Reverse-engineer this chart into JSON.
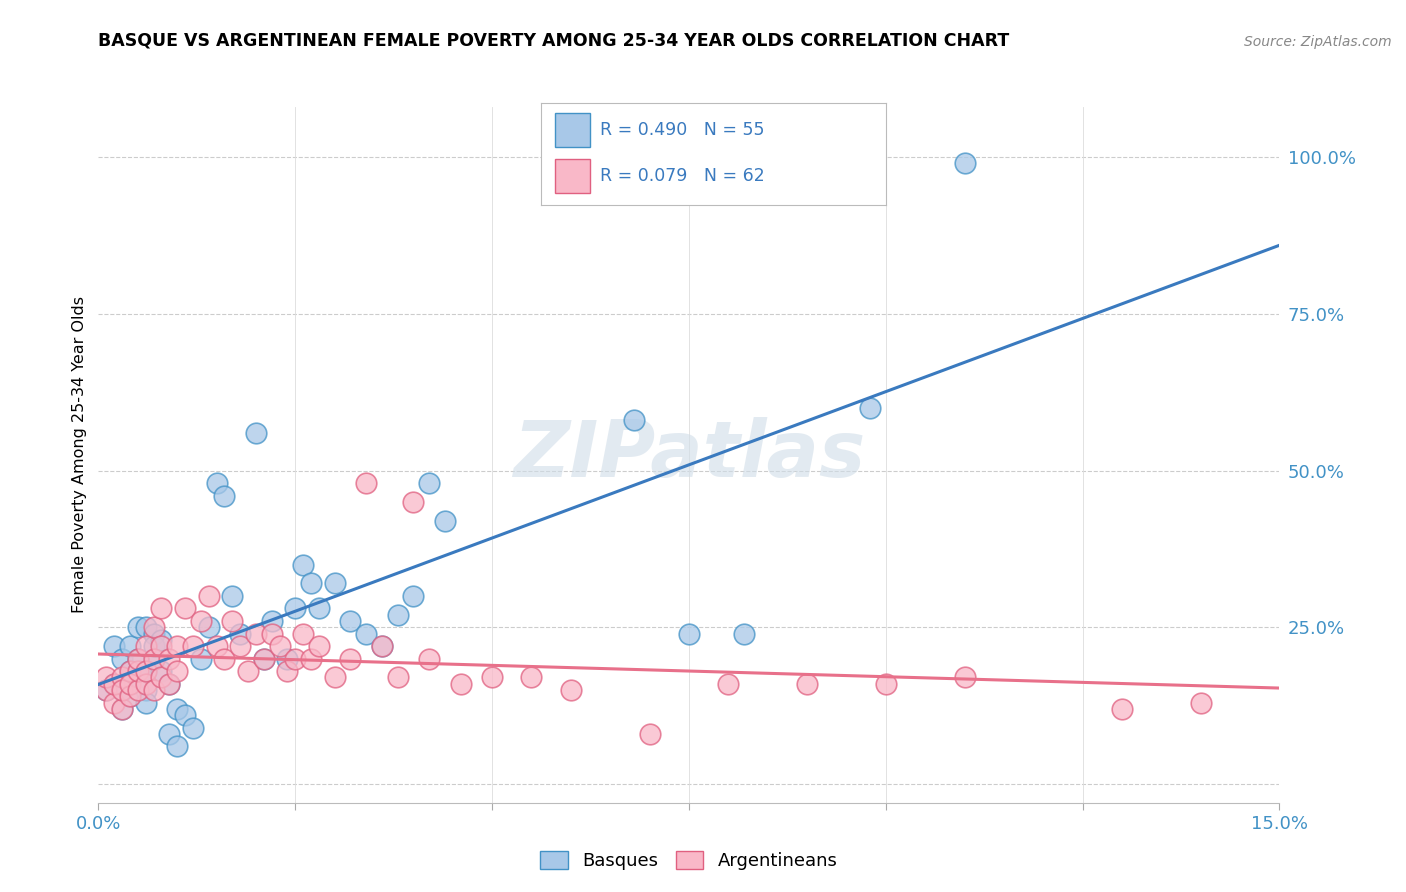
{
  "title": "BASQUE VS ARGENTINEAN FEMALE POVERTY AMONG 25-34 YEAR OLDS CORRELATION CHART",
  "source": "Source: ZipAtlas.com",
  "ylabel": "Female Poverty Among 25-34 Year Olds",
  "xlim": [
    0.0,
    0.15
  ],
  "ylim": [
    -0.03,
    1.08
  ],
  "xtick_positions": [
    0.0,
    0.025,
    0.05,
    0.075,
    0.1,
    0.125,
    0.15
  ],
  "ytick_positions": [
    0.0,
    0.25,
    0.5,
    0.75,
    1.0
  ],
  "ytick_labels": [
    "",
    "25.0%",
    "50.0%",
    "75.0%",
    "100.0%"
  ],
  "basque_color": "#a8c8e8",
  "basque_edge_color": "#4292c6",
  "argentinean_color": "#f9b8c8",
  "argentinean_edge_color": "#e06080",
  "basque_line_color": "#3a7abf",
  "argentinean_line_color": "#e8708a",
  "R_basque": 0.49,
  "N_basque": 55,
  "R_argentinean": 0.079,
  "N_argentinean": 62,
  "basque_x": [
    0.001,
    0.002,
    0.002,
    0.003,
    0.003,
    0.003,
    0.004,
    0.004,
    0.004,
    0.004,
    0.005,
    0.005,
    0.005,
    0.006,
    0.006,
    0.006,
    0.006,
    0.007,
    0.007,
    0.007,
    0.008,
    0.008,
    0.009,
    0.009,
    0.01,
    0.01,
    0.011,
    0.012,
    0.013,
    0.014,
    0.015,
    0.016,
    0.017,
    0.018,
    0.02,
    0.021,
    0.022,
    0.024,
    0.025,
    0.026,
    0.027,
    0.028,
    0.03,
    0.032,
    0.034,
    0.036,
    0.038,
    0.04,
    0.042,
    0.044,
    0.075,
    0.082,
    0.098,
    0.11,
    0.068
  ],
  "basque_y": [
    0.15,
    0.16,
    0.22,
    0.12,
    0.2,
    0.15,
    0.16,
    0.14,
    0.22,
    0.18,
    0.17,
    0.2,
    0.25,
    0.15,
    0.25,
    0.18,
    0.13,
    0.24,
    0.2,
    0.22,
    0.18,
    0.23,
    0.16,
    0.08,
    0.12,
    0.06,
    0.11,
    0.09,
    0.2,
    0.25,
    0.48,
    0.46,
    0.3,
    0.24,
    0.56,
    0.2,
    0.26,
    0.2,
    0.28,
    0.35,
    0.32,
    0.28,
    0.32,
    0.26,
    0.24,
    0.22,
    0.27,
    0.3,
    0.48,
    0.42,
    0.24,
    0.24,
    0.6,
    0.99,
    0.58
  ],
  "argentinean_x": [
    0.001,
    0.001,
    0.002,
    0.002,
    0.003,
    0.003,
    0.003,
    0.004,
    0.004,
    0.004,
    0.005,
    0.005,
    0.005,
    0.006,
    0.006,
    0.006,
    0.007,
    0.007,
    0.007,
    0.008,
    0.008,
    0.008,
    0.009,
    0.009,
    0.01,
    0.01,
    0.011,
    0.012,
    0.013,
    0.014,
    0.015,
    0.016,
    0.017,
    0.018,
    0.019,
    0.02,
    0.021,
    0.022,
    0.023,
    0.024,
    0.025,
    0.026,
    0.027,
    0.028,
    0.03,
    0.032,
    0.034,
    0.036,
    0.038,
    0.04,
    0.042,
    0.046,
    0.05,
    0.055,
    0.06,
    0.07,
    0.08,
    0.09,
    0.1,
    0.11,
    0.13,
    0.14
  ],
  "argentinean_y": [
    0.15,
    0.17,
    0.13,
    0.16,
    0.12,
    0.17,
    0.15,
    0.14,
    0.18,
    0.16,
    0.15,
    0.18,
    0.2,
    0.16,
    0.18,
    0.22,
    0.15,
    0.2,
    0.25,
    0.17,
    0.22,
    0.28,
    0.2,
    0.16,
    0.22,
    0.18,
    0.28,
    0.22,
    0.26,
    0.3,
    0.22,
    0.2,
    0.26,
    0.22,
    0.18,
    0.24,
    0.2,
    0.24,
    0.22,
    0.18,
    0.2,
    0.24,
    0.2,
    0.22,
    0.17,
    0.2,
    0.48,
    0.22,
    0.17,
    0.45,
    0.2,
    0.16,
    0.17,
    0.17,
    0.15,
    0.08,
    0.16,
    0.16,
    0.16,
    0.17,
    0.12,
    0.13
  ]
}
